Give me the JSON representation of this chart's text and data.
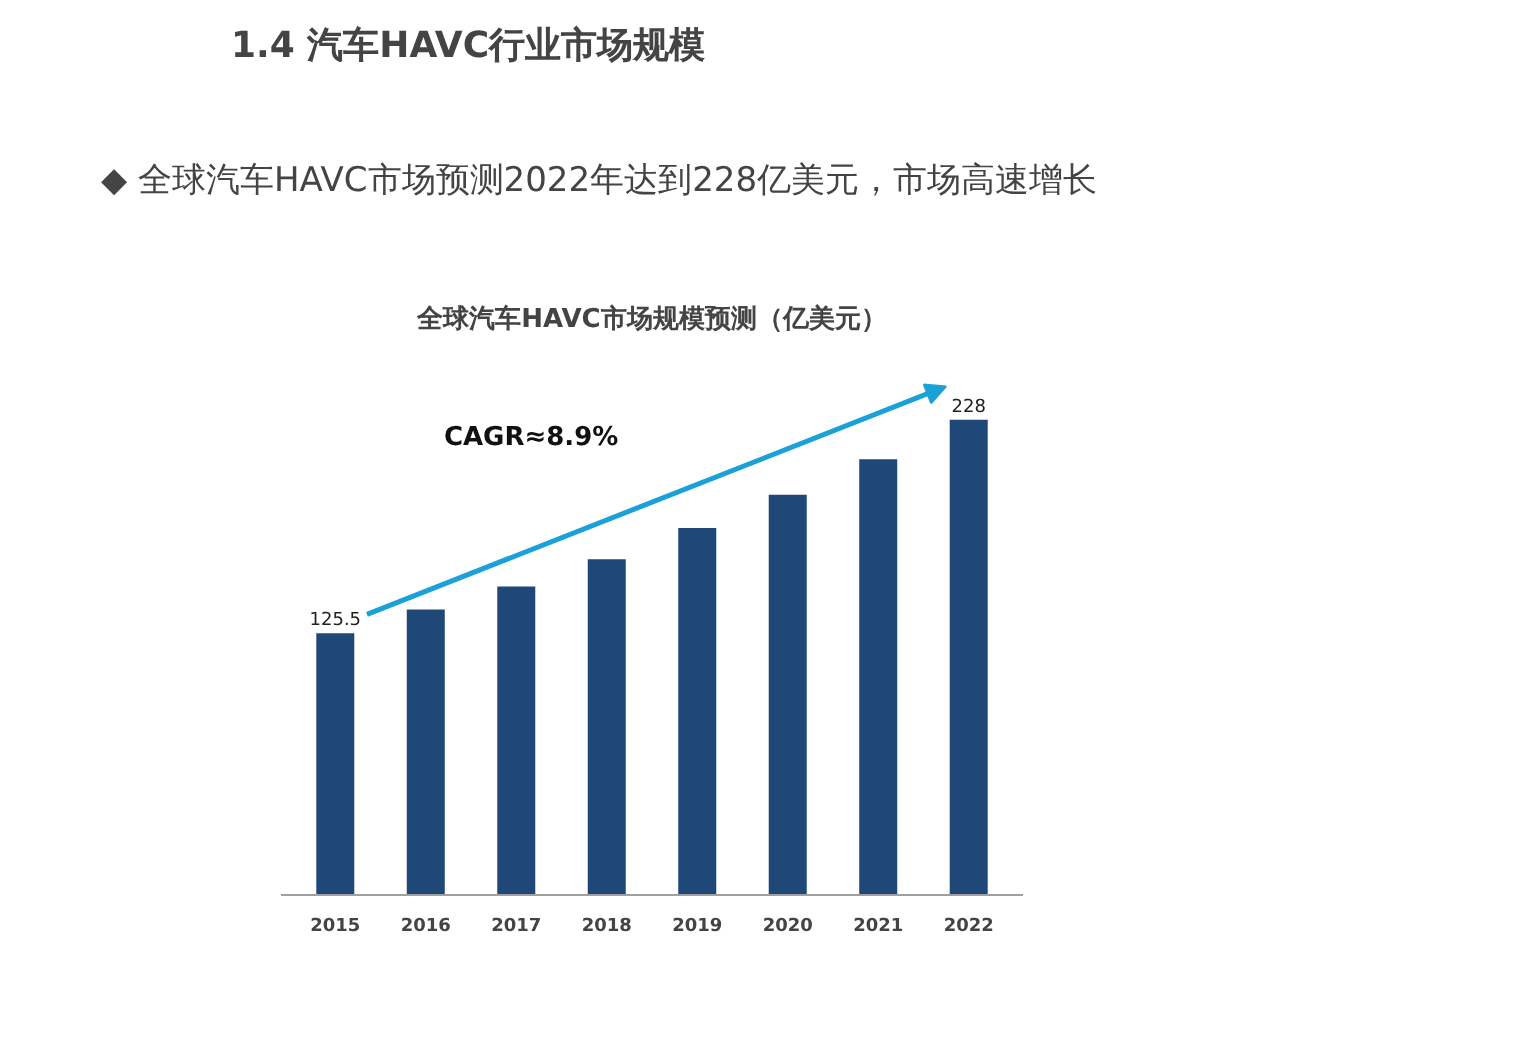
{
  "chart_data": {
    "type": "bar",
    "title": "1.4 汽车HAVC行业市场规模",
    "subtitle": "◆ 全球汽车HAVC市场预测2022年达到228亿美元，市场高速增长",
    "xlabel": "全球汽车HAVC市场规模预测（亿美元）",
    "categories": [
      "2015",
      "2016",
      "2017",
      "2018",
      "2019",
      "2020",
      "2021",
      "2022"
    ],
    "values": [
      125.5,
      137,
      148,
      161,
      176,
      192,
      209,
      228
    ],
    "value_labels": [
      "125.5",
      null,
      null,
      null,
      null,
      null,
      null,
      "228"
    ],
    "color": "#1f4878",
    "annotations": [
      "CAGR≈8.9%"
    ]
  }
}
